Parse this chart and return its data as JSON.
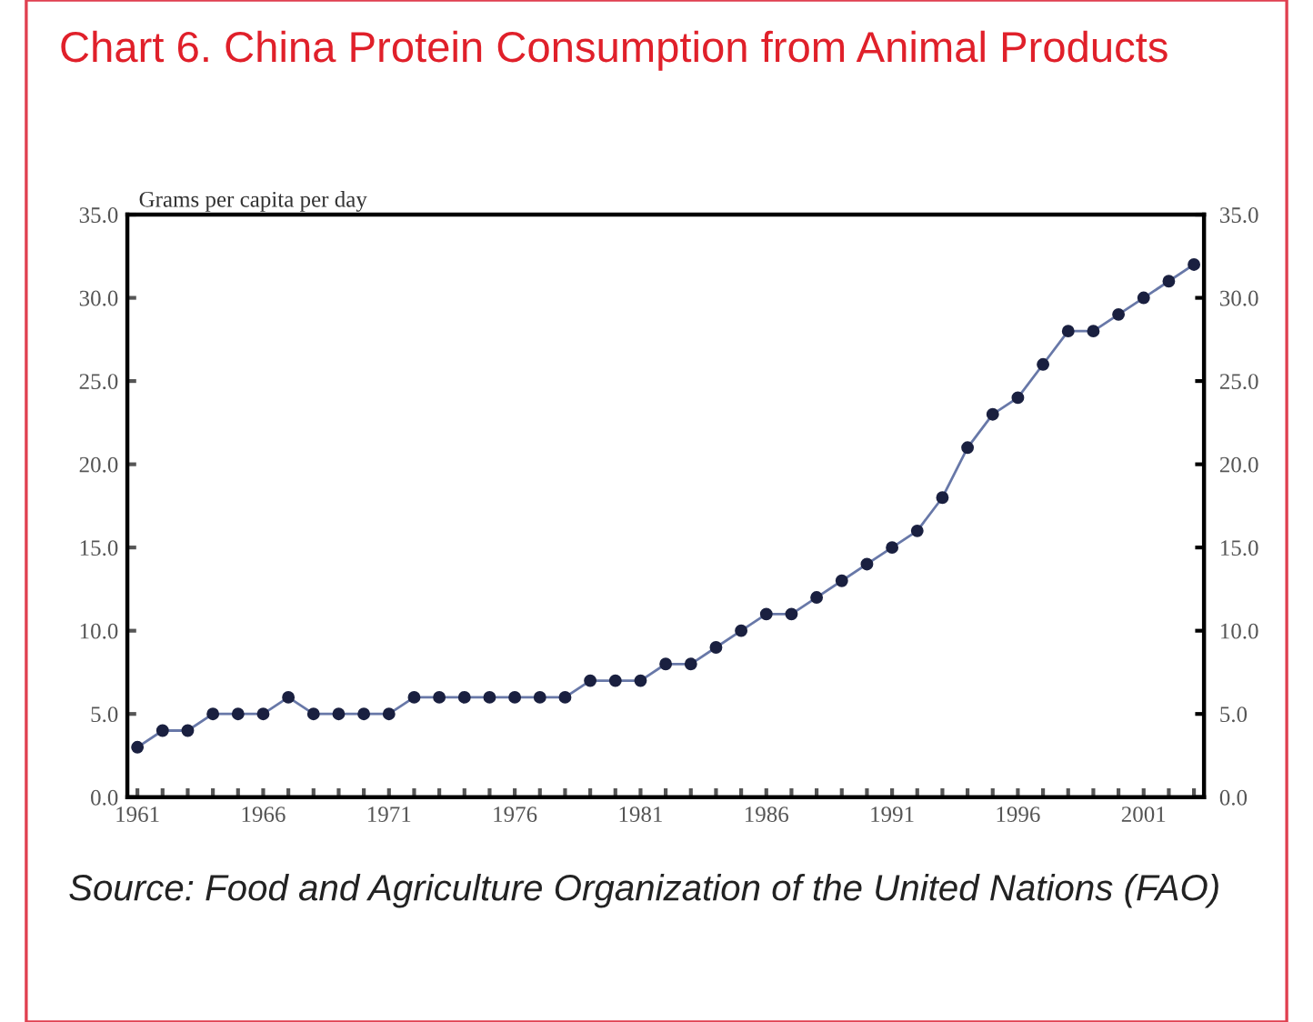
{
  "chart_data": {
    "type": "line",
    "title": "Chart 6. China Protein Consumption from Animal Products",
    "ylabel": "Grams per capita per day",
    "annotations": [
      "Source: Food and Agriculture Organization of the United Nations (FAO)"
    ],
    "x": [
      1961,
      1962,
      1963,
      1964,
      1965,
      1966,
      1967,
      1968,
      1969,
      1970,
      1971,
      1972,
      1973,
      1974,
      1975,
      1976,
      1977,
      1978,
      1979,
      1980,
      1981,
      1982,
      1983,
      1984,
      1985,
      1986,
      1987,
      1988,
      1989,
      1990,
      1991,
      1992,
      1993,
      1994,
      1995,
      1996,
      1997,
      1998,
      1999,
      2000,
      2001,
      2002,
      2003
    ],
    "series": [
      {
        "color": "#6878a8",
        "values": [
          3,
          4,
          4,
          5,
          5,
          5,
          6,
          5,
          5,
          5,
          5,
          6,
          6,
          6,
          6,
          6,
          6,
          6,
          7,
          7,
          7,
          8,
          8,
          9,
          10,
          11,
          11,
          12,
          13,
          14,
          15,
          16,
          18,
          21,
          23,
          24,
          26,
          28,
          28,
          29,
          30,
          31,
          32
        ]
      }
    ],
    "marker": "circle",
    "grid": false,
    "xlim": [
      1960.6,
      2003.4
    ],
    "xticks": [
      1961,
      {
        "value": 1962,
        "label": null
      },
      {
        "value": 1963,
        "label": null
      },
      {
        "value": 1964,
        "label": null
      },
      {
        "value": 1965,
        "label": null
      },
      1966,
      {
        "value": 1967,
        "label": null
      },
      {
        "value": 1968,
        "label": null
      },
      {
        "value": 1969,
        "label": null
      },
      {
        "value": 1970,
        "label": null
      },
      1971,
      {
        "value": 1972,
        "label": null
      },
      {
        "value": 1973,
        "label": null
      },
      {
        "value": 1974,
        "label": null
      },
      {
        "value": 1975,
        "label": null
      },
      1976,
      {
        "value": 1977,
        "label": null
      },
      {
        "value": 1978,
        "label": null
      },
      {
        "value": 1979,
        "label": null
      },
      {
        "value": 1980,
        "label": null
      },
      1981,
      {
        "value": 1982,
        "label": null
      },
      {
        "value": 1983,
        "label": null
      },
      {
        "value": 1984,
        "label": null
      },
      {
        "value": 1985,
        "label": null
      },
      1986,
      {
        "value": 1987,
        "label": null
      },
      {
        "value": 1988,
        "label": null
      },
      {
        "value": 1989,
        "label": null
      },
      {
        "value": 1990,
        "label": null
      },
      1991,
      {
        "value": 1992,
        "label": null
      },
      {
        "value": 1993,
        "label": null
      },
      {
        "value": 1994,
        "label": null
      },
      {
        "value": 1995,
        "label": null
      },
      1996,
      {
        "value": 1997,
        "label": null
      },
      {
        "value": 1998,
        "label": null
      },
      {
        "value": 1999,
        "label": null
      },
      {
        "value": 2000,
        "label": null
      },
      2001,
      {
        "value": 2002,
        "label": null
      },
      {
        "value": 2003,
        "label": null
      }
    ],
    "ylim": [
      0,
      35
    ],
    "yticks": [
      {
        "value": 0,
        "label": "0.0"
      },
      {
        "value": 5,
        "label": "5.0"
      },
      {
        "value": 10,
        "label": "10.0"
      },
      {
        "value": 15,
        "label": "15.0"
      },
      {
        "value": 20,
        "label": "20.0"
      },
      {
        "value": 25,
        "label": "25.0"
      },
      {
        "value": 30,
        "label": "30.0"
      },
      {
        "value": 35,
        "label": "35.0"
      }
    ],
    "y2lim": [
      0,
      35
    ],
    "y2ticks": [
      {
        "value": 0,
        "label": "0.0"
      },
      {
        "value": 5,
        "label": "5.0"
      },
      {
        "value": 10,
        "label": "10.0"
      },
      {
        "value": 15,
        "label": "15.0"
      },
      {
        "value": 20,
        "label": "20.0"
      },
      {
        "value": 25,
        "label": "25.0"
      },
      {
        "value": 30,
        "label": "30.0"
      },
      {
        "value": 35,
        "label": "35.0"
      }
    ]
  }
}
